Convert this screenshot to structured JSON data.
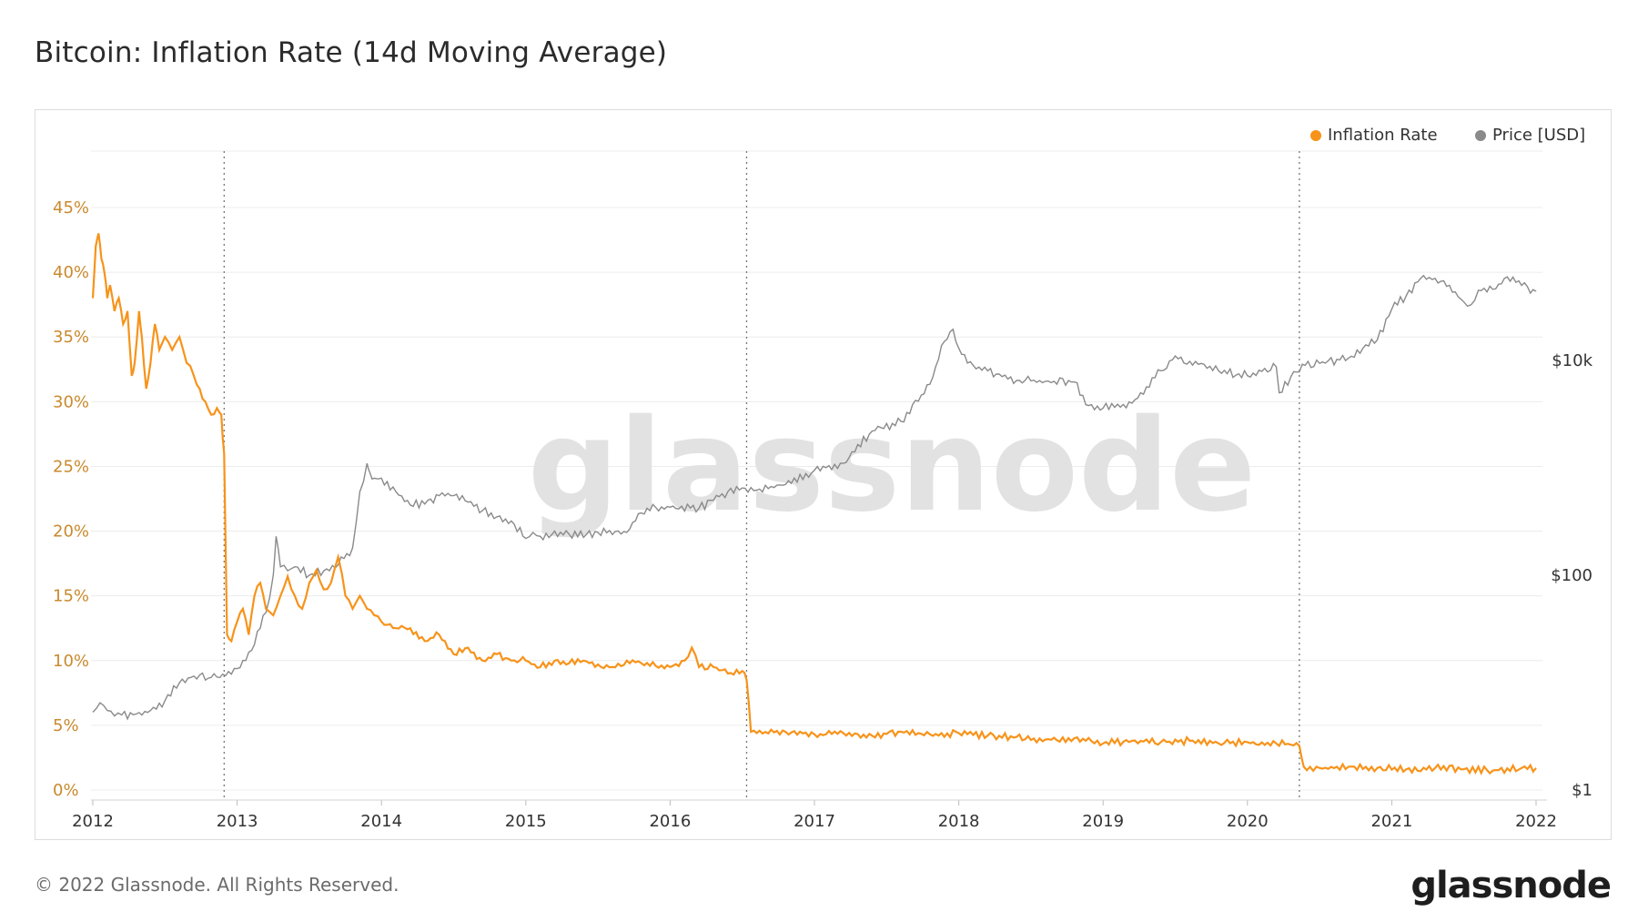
{
  "title": "Bitcoin: Inflation Rate (14d Moving Average)",
  "footer": "© 2022 Glassnode. All Rights Reserved.",
  "brand": "glassnode",
  "watermark": "glassnode",
  "colors": {
    "inflation": "#f7931a",
    "price": "#8a8a8a",
    "grid": "#ececec"
  },
  "chart_data": {
    "type": "line",
    "legend": {
      "position": "top-right",
      "entries": [
        "Inflation Rate",
        "Price [USD]"
      ]
    },
    "x_ticks": [
      "2012",
      "2013",
      "2014",
      "2015",
      "2016",
      "2017",
      "2018",
      "2019",
      "2020",
      "2021",
      "2022"
    ],
    "y_left": {
      "unit": "%",
      "lim": [
        0,
        45
      ],
      "ticks": [
        "0%",
        "5%",
        "10%",
        "15%",
        "20%",
        "25%",
        "30%",
        "35%",
        "40%",
        "45%"
      ]
    },
    "y_right": {
      "scale": "log",
      "ticks": [
        "$1",
        "$100",
        "$10k"
      ]
    },
    "halving_dates": [
      2012.91,
      2016.53,
      2020.36
    ],
    "series": [
      {
        "name": "Inflation Rate",
        "axis": "left",
        "x": [
          2012.0,
          2012.02,
          2012.04,
          2012.06,
          2012.08,
          2012.1,
          2012.12,
          2012.15,
          2012.18,
          2012.21,
          2012.24,
          2012.27,
          2012.29,
          2012.32,
          2012.34,
          2012.37,
          2012.4,
          2012.43,
          2012.46,
          2012.5,
          2012.55,
          2012.6,
          2012.65,
          2012.7,
          2012.74,
          2012.78,
          2012.82,
          2012.86,
          2012.89,
          2012.91,
          2012.93,
          2012.96,
          2013.0,
          2013.04,
          2013.08,
          2013.12,
          2013.16,
          2013.2,
          2013.25,
          2013.3,
          2013.35,
          2013.4,
          2013.45,
          2013.5,
          2013.55,
          2013.6,
          2013.65,
          2013.7,
          2013.75,
          2013.8,
          2013.85,
          2013.9,
          2013.95,
          2014.0,
          2014.1,
          2014.2,
          2014.3,
          2014.4,
          2014.5,
          2014.6,
          2014.7,
          2014.8,
          2014.9,
          2015.0,
          2015.1,
          2015.2,
          2015.3,
          2015.4,
          2015.5,
          2015.6,
          2015.7,
          2015.8,
          2015.9,
          2016.0,
          2016.1,
          2016.15,
          2016.2,
          2016.3,
          2016.4,
          2016.5,
          2016.53,
          2016.56,
          2016.6,
          2016.8,
          2017.0,
          2017.2,
          2017.4,
          2017.6,
          2017.8,
          2018.0,
          2018.2,
          2018.4,
          2018.6,
          2018.8,
          2019.0,
          2019.2,
          2019.4,
          2019.6,
          2019.8,
          2020.0,
          2020.2,
          2020.3,
          2020.36,
          2020.39,
          2020.5,
          2020.7,
          2020.9,
          2021.1,
          2021.3,
          2021.5,
          2021.7,
          2021.9,
          2022.0
        ],
        "y": [
          38,
          42,
          43,
          41,
          40,
          38,
          39,
          37,
          38,
          36,
          37,
          32,
          33,
          37,
          35,
          31,
          33,
          36,
          34,
          35,
          34,
          35,
          33,
          32,
          31,
          30,
          29,
          29.5,
          29,
          26,
          12,
          11.5,
          13,
          14,
          12,
          15,
          16,
          14,
          13.5,
          15,
          16.5,
          15,
          14,
          16,
          17,
          15.5,
          16,
          18,
          15,
          14,
          15,
          14,
          13.5,
          13,
          12.5,
          12.5,
          11.5,
          12,
          10.5,
          11,
          10,
          10.5,
          10,
          10,
          9.5,
          10,
          9.8,
          10,
          9.7,
          9.5,
          10,
          9.8,
          9.6,
          9.5,
          10,
          11,
          9.5,
          9.5,
          9.0,
          9.2,
          8.5,
          4.5,
          4.4,
          4.5,
          4.3,
          4.4,
          4.2,
          4.5,
          4.3,
          4.4,
          4.2,
          4.1,
          3.9,
          4.0,
          3.6,
          3.8,
          3.7,
          3.8,
          3.6,
          3.7,
          3.6,
          3.5,
          3.4,
          1.8,
          1.7,
          1.8,
          1.7,
          1.6,
          1.7,
          1.6,
          1.5,
          1.7,
          1.7
        ]
      },
      {
        "name": "Price [USD]",
        "axis": "right",
        "x": [
          2012.0,
          2012.05,
          2012.1,
          2012.15,
          2012.2,
          2012.3,
          2012.4,
          2012.5,
          2012.6,
          2012.7,
          2012.8,
          2012.9,
          2013.0,
          2013.1,
          2013.2,
          2013.25,
          2013.27,
          2013.3,
          2013.35,
          2013.4,
          2013.5,
          2013.6,
          2013.7,
          2013.8,
          2013.85,
          2013.9,
          2013.92,
          2013.95,
          2014.0,
          2014.1,
          2014.2,
          2014.3,
          2014.4,
          2014.5,
          2014.6,
          2014.7,
          2014.8,
          2014.9,
          2015.0,
          2015.05,
          2015.1,
          2015.3,
          2015.5,
          2015.7,
          2015.8,
          2015.9,
          2016.0,
          2016.2,
          2016.4,
          2016.5,
          2016.6,
          2016.8,
          2017.0,
          2017.2,
          2017.4,
          2017.6,
          2017.8,
          2017.9,
          2017.96,
          2018.0,
          2018.1,
          2018.2,
          2018.4,
          2018.6,
          2018.8,
          2018.9,
          2019.0,
          2019.2,
          2019.4,
          2019.5,
          2019.6,
          2019.8,
          2020.0,
          2020.2,
          2020.22,
          2020.3,
          2020.4,
          2020.5,
          2020.7,
          2020.9,
          2021.0,
          2021.1,
          2021.2,
          2021.3,
          2021.4,
          2021.5,
          2021.55,
          2021.6,
          2021.7,
          2021.8,
          2021.9,
          2022.0
        ],
        "y": [
          5.3,
          6.5,
          5.5,
          4.9,
          5.0,
          5.1,
          5.5,
          6.8,
          10,
          11.5,
          11,
          12,
          13.5,
          20,
          45,
          100,
          230,
          120,
          110,
          120,
          100,
          110,
          125,
          180,
          600,
          1100,
          900,
          800,
          800,
          600,
          450,
          460,
          550,
          550,
          480,
          400,
          350,
          320,
          220,
          250,
          230,
          240,
          250,
          250,
          380,
          430,
          430,
          420,
          600,
          650,
          620,
          700,
          950,
          1100,
          2200,
          2700,
          6000,
          15000,
          19500,
          13000,
          9000,
          8000,
          6500,
          6400,
          6300,
          3800,
          3600,
          4000,
          8000,
          11000,
          9800,
          8000,
          7200,
          8700,
          5000,
          7000,
          9000,
          9400,
          10500,
          15500,
          30000,
          40000,
          58000,
          58000,
          50000,
          35000,
          33000,
          45000,
          46000,
          60000,
          50000,
          44000
        ]
      }
    ]
  }
}
